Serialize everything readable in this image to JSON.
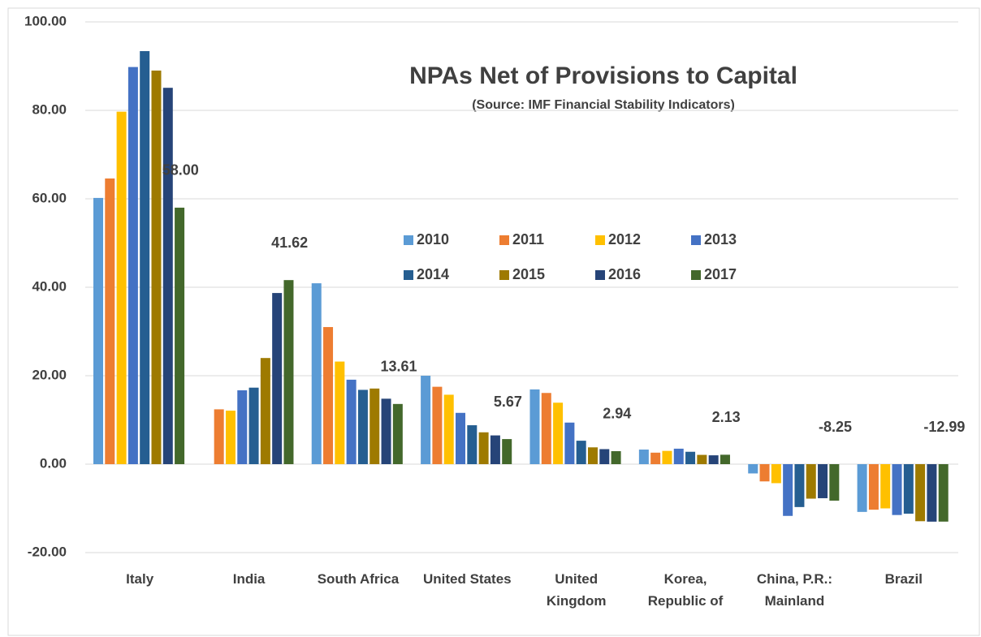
{
  "chart_data": {
    "type": "bar",
    "title": "NPAs Net of Provisions to Capital",
    "subtitle": "(Source: IMF Financial Stability Indicators)",
    "categories": [
      "Italy",
      "India",
      "South Africa",
      "United States",
      "United\nKingdom",
      "Korea,\nRepublic of",
      "China, P.R.:\nMainland",
      "Brazil"
    ],
    "ylim": [
      -20,
      100
    ],
    "yticks": [
      {
        "value": -20,
        "label": "-20.00"
      },
      {
        "value": 0,
        "label": "0.00"
      },
      {
        "value": 20,
        "label": "20.00"
      },
      {
        "value": 40,
        "label": "40.00"
      },
      {
        "value": 60,
        "label": "60.00"
      },
      {
        "value": 80,
        "label": "80.00"
      },
      {
        "value": 100,
        "label": "100.00"
      }
    ],
    "grid": true,
    "series": [
      {
        "name": "2010",
        "color": "#5b9bd5",
        "values": [
          60.2,
          null,
          40.9,
          20.0,
          16.9,
          3.3,
          -2.1,
          -10.8
        ]
      },
      {
        "name": "2011",
        "color": "#ed7d31",
        "values": [
          64.6,
          12.4,
          31.0,
          17.5,
          16.1,
          2.6,
          -3.9,
          -10.3
        ]
      },
      {
        "name": "2012",
        "color": "#ffc000",
        "values": [
          79.7,
          12.1,
          23.2,
          15.7,
          13.9,
          3.0,
          -4.3,
          -10.0
        ]
      },
      {
        "name": "2013",
        "color": "#4472c4",
        "values": [
          89.8,
          16.7,
          19.1,
          11.6,
          9.4,
          3.5,
          -11.7,
          -11.5
        ]
      },
      {
        "name": "2014",
        "color": "#255e91",
        "values": [
          93.4,
          17.3,
          16.8,
          8.8,
          5.3,
          2.8,
          -9.7,
          -11.2
        ]
      },
      {
        "name": "2015",
        "color": "#9e7a00",
        "values": [
          89.0,
          24.0,
          17.1,
          7.2,
          3.8,
          2.1,
          -7.8,
          -12.9
        ]
      },
      {
        "name": "2016",
        "color": "#264478",
        "values": [
          85.1,
          38.7,
          14.8,
          6.5,
          3.4,
          2.0,
          -7.7,
          -13.0
        ]
      },
      {
        "name": "2017",
        "color": "#43682b",
        "values": [
          58.0,
          41.62,
          13.61,
          5.67,
          2.94,
          2.13,
          -8.25,
          -12.99
        ],
        "value_labels": [
          "58.00",
          "41.62",
          "13.61",
          "5.67",
          "2.94",
          "2.13",
          "-8.25",
          "-12.99"
        ]
      }
    ]
  }
}
